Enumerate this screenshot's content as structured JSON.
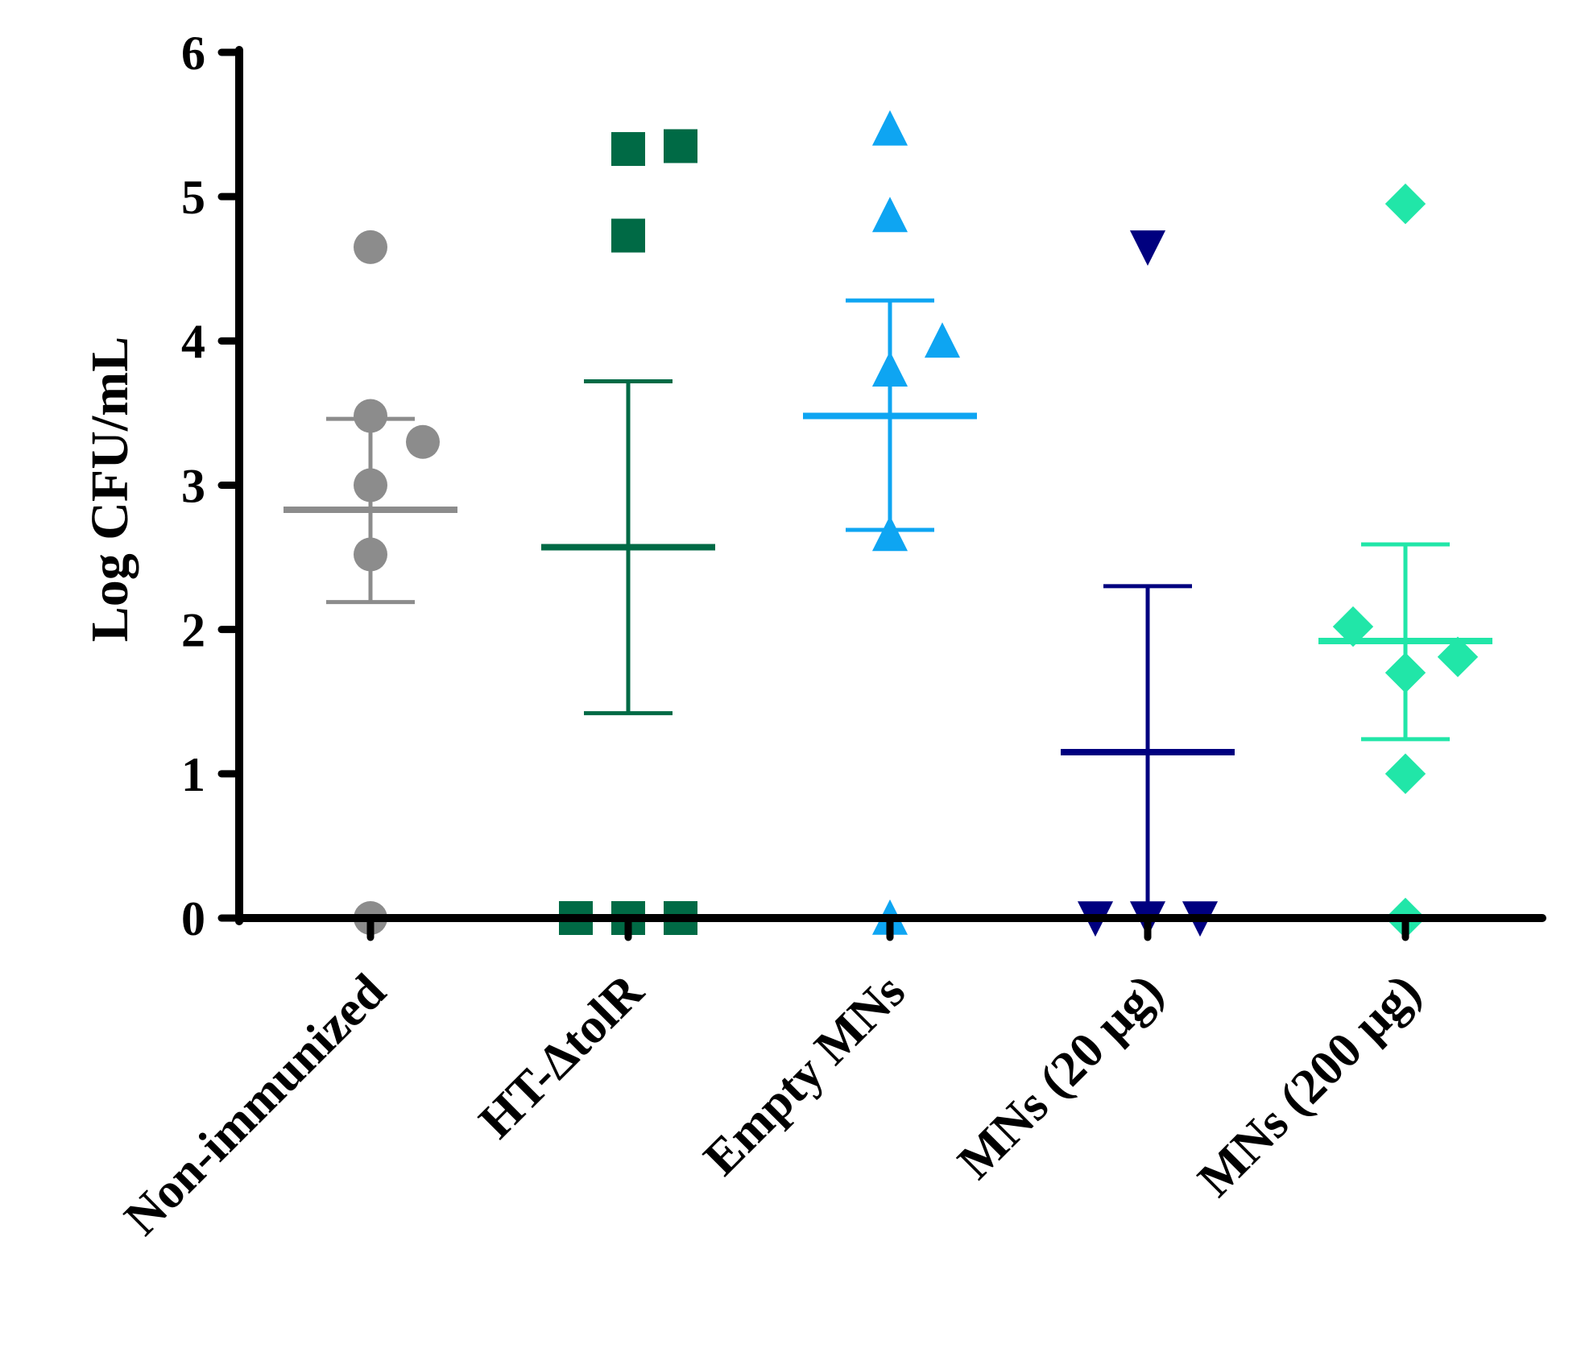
{
  "chart_data": {
    "type": "scatter",
    "subtype": "dot-plot with mean and error bars",
    "ylabel": "Log CFU/mL",
    "ylim": [
      0,
      6
    ],
    "yticks": [
      0,
      1,
      2,
      3,
      4,
      5,
      6
    ],
    "categories": [
      "Non-immunized",
      "HT-ΔtolR",
      "Empty MNs",
      "MNs (20 µg)",
      "MNs (200 µg)"
    ],
    "series": [
      {
        "category": "Non-immunized",
        "marker": "circle",
        "color": "#8c8c8c",
        "points": [
          [
            0,
            4.65
          ],
          [
            0,
            3.48
          ],
          [
            0.42,
            3.3
          ],
          [
            0,
            3.0
          ],
          [
            0,
            2.52
          ],
          [
            0,
            0.0
          ]
        ],
        "mean": 2.83,
        "error_upper": 3.46,
        "error_lower": 2.19
      },
      {
        "category": "HT-ΔtolR",
        "marker": "square",
        "color": "#006a45",
        "points": [
          [
            0,
            5.33
          ],
          [
            0.42,
            5.35
          ],
          [
            0,
            4.73
          ],
          [
            -0.42,
            0.0
          ],
          [
            0,
            0.0
          ],
          [
            0.42,
            0.0
          ]
        ],
        "mean": 2.57,
        "error_upper": 3.72,
        "error_lower": 1.42
      },
      {
        "category": "Empty MNs",
        "marker": "triangle-up",
        "color": "#0ea5f2",
        "points": [
          [
            0,
            5.47
          ],
          [
            0,
            4.87
          ],
          [
            0.42,
            4.0
          ],
          [
            0,
            3.8
          ],
          [
            0,
            2.66
          ],
          [
            0,
            0.0
          ]
        ],
        "mean": 3.48,
        "error_upper": 4.28,
        "error_lower": 2.69
      },
      {
        "category": "MNs (20 µg)",
        "marker": "triangle-down",
        "color": "#00007f",
        "points": [
          [
            0,
            4.65
          ],
          [
            -0.42,
            0.0
          ],
          [
            0,
            0.0
          ],
          [
            0.42,
            0.0
          ]
        ],
        "mean": 1.15,
        "error_upper": 2.3,
        "error_lower": 0.0
      },
      {
        "category": "MNs (200 µg)",
        "marker": "diamond",
        "color": "#21e6a8",
        "points": [
          [
            0,
            4.95
          ],
          [
            -0.42,
            2.02
          ],
          [
            0.42,
            1.81
          ],
          [
            0,
            1.7
          ],
          [
            0,
            1.0
          ],
          [
            0,
            0.0
          ]
        ],
        "mean": 1.92,
        "error_upper": 2.59,
        "error_lower": 1.24
      }
    ],
    "grid": false,
    "legend": "none"
  }
}
